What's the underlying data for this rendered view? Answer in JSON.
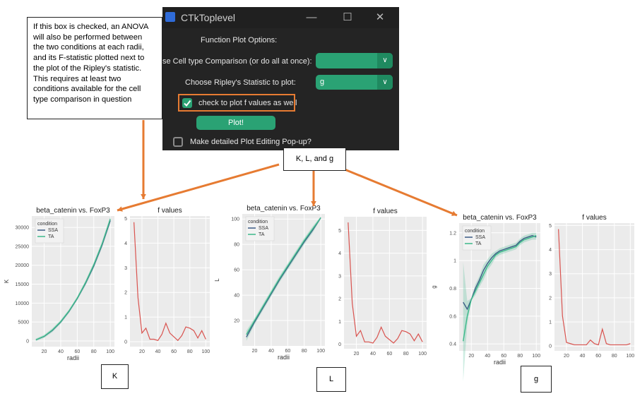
{
  "window": {
    "title": "CTkToplevel",
    "heading": "Function Plot Options:",
    "cell_type_label": "se Cell type Comparison (or do all at once):",
    "cell_type_value": "",
    "ripley_label": "Choose Ripley's Statistic to plot:",
    "ripley_value": "g",
    "fvalues_checkbox_label": "check to plot f values as well",
    "plot_button": "Plot!",
    "popup_checkbox_label": "Make detailed Plot Editing Pop-up?"
  },
  "callout": {
    "lines": [
      "If this box is checked, an ANOVA",
      "will also be performed between",
      "the two conditions at each radii,",
      "and its F-statistic plotted next to",
      "the plot of the Ripley's statistic.",
      "This requires at least two",
      "conditions available for the cell",
      "type comparison in question"
    ],
    "stats_box": "K, L, and g"
  },
  "colors": {
    "ssa": "#3b5b85",
    "ta": "#3cb98a",
    "fline": "#d9534f",
    "accent": "#e67b32",
    "panel": "#ebebeb"
  },
  "panel_labels": [
    "K",
    "L",
    "g"
  ],
  "chart_data": [
    {
      "type": "line",
      "title": "beta_catenin vs. FoxP3",
      "xlabel": "radii",
      "ylabel": "K",
      "xlim": [
        5,
        105
      ],
      "ylim": [
        -1500,
        33000
      ],
      "xticks": [
        20,
        40,
        60,
        80,
        100
      ],
      "yticks": [
        0,
        5000,
        10000,
        15000,
        20000,
        25000,
        30000
      ],
      "legend_title": "condition",
      "legend_placement": "top-left",
      "x": [
        10,
        20,
        30,
        40,
        50,
        60,
        70,
        80,
        90,
        100
      ],
      "series": [
        {
          "name": "SSA",
          "values": [
            300,
            1200,
            2800,
            5000,
            7800,
            11200,
            15200,
            19800,
            25300,
            31800
          ]
        },
        {
          "name": "TA",
          "values": [
            300,
            1250,
            2900,
            5100,
            7900,
            11300,
            15400,
            20100,
            25600,
            32200
          ]
        }
      ]
    },
    {
      "type": "line",
      "title": "f values",
      "xlabel": "",
      "ylabel": "",
      "xlim": [
        5,
        105
      ],
      "ylim": [
        -0.2,
        5.1
      ],
      "xticks": [
        20,
        40,
        60,
        80,
        100
      ],
      "yticks": [
        0,
        1,
        2,
        3,
        4,
        5
      ],
      "x": [
        10,
        15,
        20,
        25,
        30,
        35,
        40,
        45,
        50,
        55,
        60,
        65,
        70,
        75,
        80,
        85,
        90,
        95,
        100
      ],
      "series": [
        {
          "values": [
            4.85,
            1.8,
            0.35,
            0.55,
            0.1,
            0.1,
            0.05,
            0.3,
            0.75,
            0.35,
            0.2,
            0.05,
            0.25,
            0.6,
            0.55,
            0.45,
            0.15,
            0.45,
            0.1
          ]
        }
      ]
    },
    {
      "type": "line",
      "title": "beta_catenin vs. FoxP3",
      "xlabel": "radii",
      "ylabel": "L",
      "xlim": [
        5,
        105
      ],
      "ylim": [
        0,
        104
      ],
      "xticks": [
        20,
        40,
        60,
        80,
        100
      ],
      "yticks": [
        20,
        40,
        60,
        80,
        100
      ],
      "legend_title": "condition",
      "legend_placement": "top-left",
      "x": [
        10,
        20,
        30,
        40,
        50,
        60,
        70,
        80,
        90,
        100
      ],
      "series": [
        {
          "name": "SSA",
          "values": [
            7,
            19,
            30,
            41,
            52,
            62,
            72,
            82,
            91,
            101
          ]
        },
        {
          "name": "TA",
          "values": [
            9,
            20,
            31,
            42,
            53,
            63,
            73,
            83,
            92,
            101
          ]
        }
      ]
    },
    {
      "type": "line",
      "title": "f values",
      "xlabel": "",
      "ylabel": "",
      "xlim": [
        5,
        105
      ],
      "ylim": [
        -0.2,
        5.6
      ],
      "xticks": [
        20,
        40,
        60,
        80,
        100
      ],
      "yticks": [
        0,
        1,
        2,
        3,
        4,
        5
      ],
      "x": [
        10,
        15,
        20,
        25,
        30,
        35,
        40,
        45,
        50,
        55,
        60,
        65,
        70,
        75,
        80,
        85,
        90,
        95,
        100
      ],
      "series": [
        {
          "values": [
            5.35,
            1.8,
            0.35,
            0.6,
            0.1,
            0.1,
            0.05,
            0.3,
            0.75,
            0.35,
            0.2,
            0.05,
            0.25,
            0.6,
            0.55,
            0.45,
            0.15,
            0.45,
            0.1
          ]
        }
      ]
    },
    {
      "type": "line",
      "title": "beta_catenin vs. FoxP3",
      "xlabel": "radii",
      "ylabel": "g",
      "xlim": [
        5,
        105
      ],
      "ylim": [
        0.35,
        1.27
      ],
      "xticks": [
        20,
        40,
        60,
        80,
        100
      ],
      "yticks": [
        0.4,
        0.6,
        0.8,
        1.0,
        1.2
      ],
      "legend_title": "condition",
      "legend_placement": "top-left",
      "x": [
        10,
        15,
        20,
        25,
        30,
        35,
        40,
        45,
        50,
        55,
        60,
        65,
        70,
        75,
        80,
        85,
        90,
        95,
        100
      ],
      "series": [
        {
          "name": "SSA",
          "values": [
            0.7,
            0.65,
            0.72,
            0.8,
            0.86,
            0.93,
            0.98,
            1.02,
            1.05,
            1.07,
            1.08,
            1.09,
            1.1,
            1.11,
            1.14,
            1.16,
            1.17,
            1.18,
            1.17
          ]
        },
        {
          "name": "TA",
          "values": [
            0.42,
            0.6,
            0.72,
            0.78,
            0.84,
            0.9,
            0.96,
            1.0,
            1.04,
            1.06,
            1.07,
            1.08,
            1.09,
            1.1,
            1.13,
            1.15,
            1.16,
            1.17,
            1.18
          ]
        }
      ]
    },
    {
      "type": "line",
      "title": "f values",
      "xlabel": "",
      "ylabel": "",
      "xlim": [
        5,
        105
      ],
      "ylim": [
        -0.2,
        5.1
      ],
      "xticks": [
        20,
        40,
        60,
        80,
        100
      ],
      "yticks": [
        0,
        1,
        2,
        3,
        4,
        5
      ],
      "x": [
        10,
        15,
        20,
        25,
        30,
        35,
        40,
        45,
        50,
        55,
        60,
        65,
        70,
        75,
        80,
        85,
        90,
        95,
        100
      ],
      "series": [
        {
          "values": [
            4.85,
            1.25,
            0.15,
            0.1,
            0.05,
            0.05,
            0.05,
            0.05,
            0.25,
            0.1,
            0.05,
            0.7,
            0.1,
            0.05,
            0.05,
            0.05,
            0.05,
            0.05,
            0.1
          ]
        }
      ]
    }
  ]
}
